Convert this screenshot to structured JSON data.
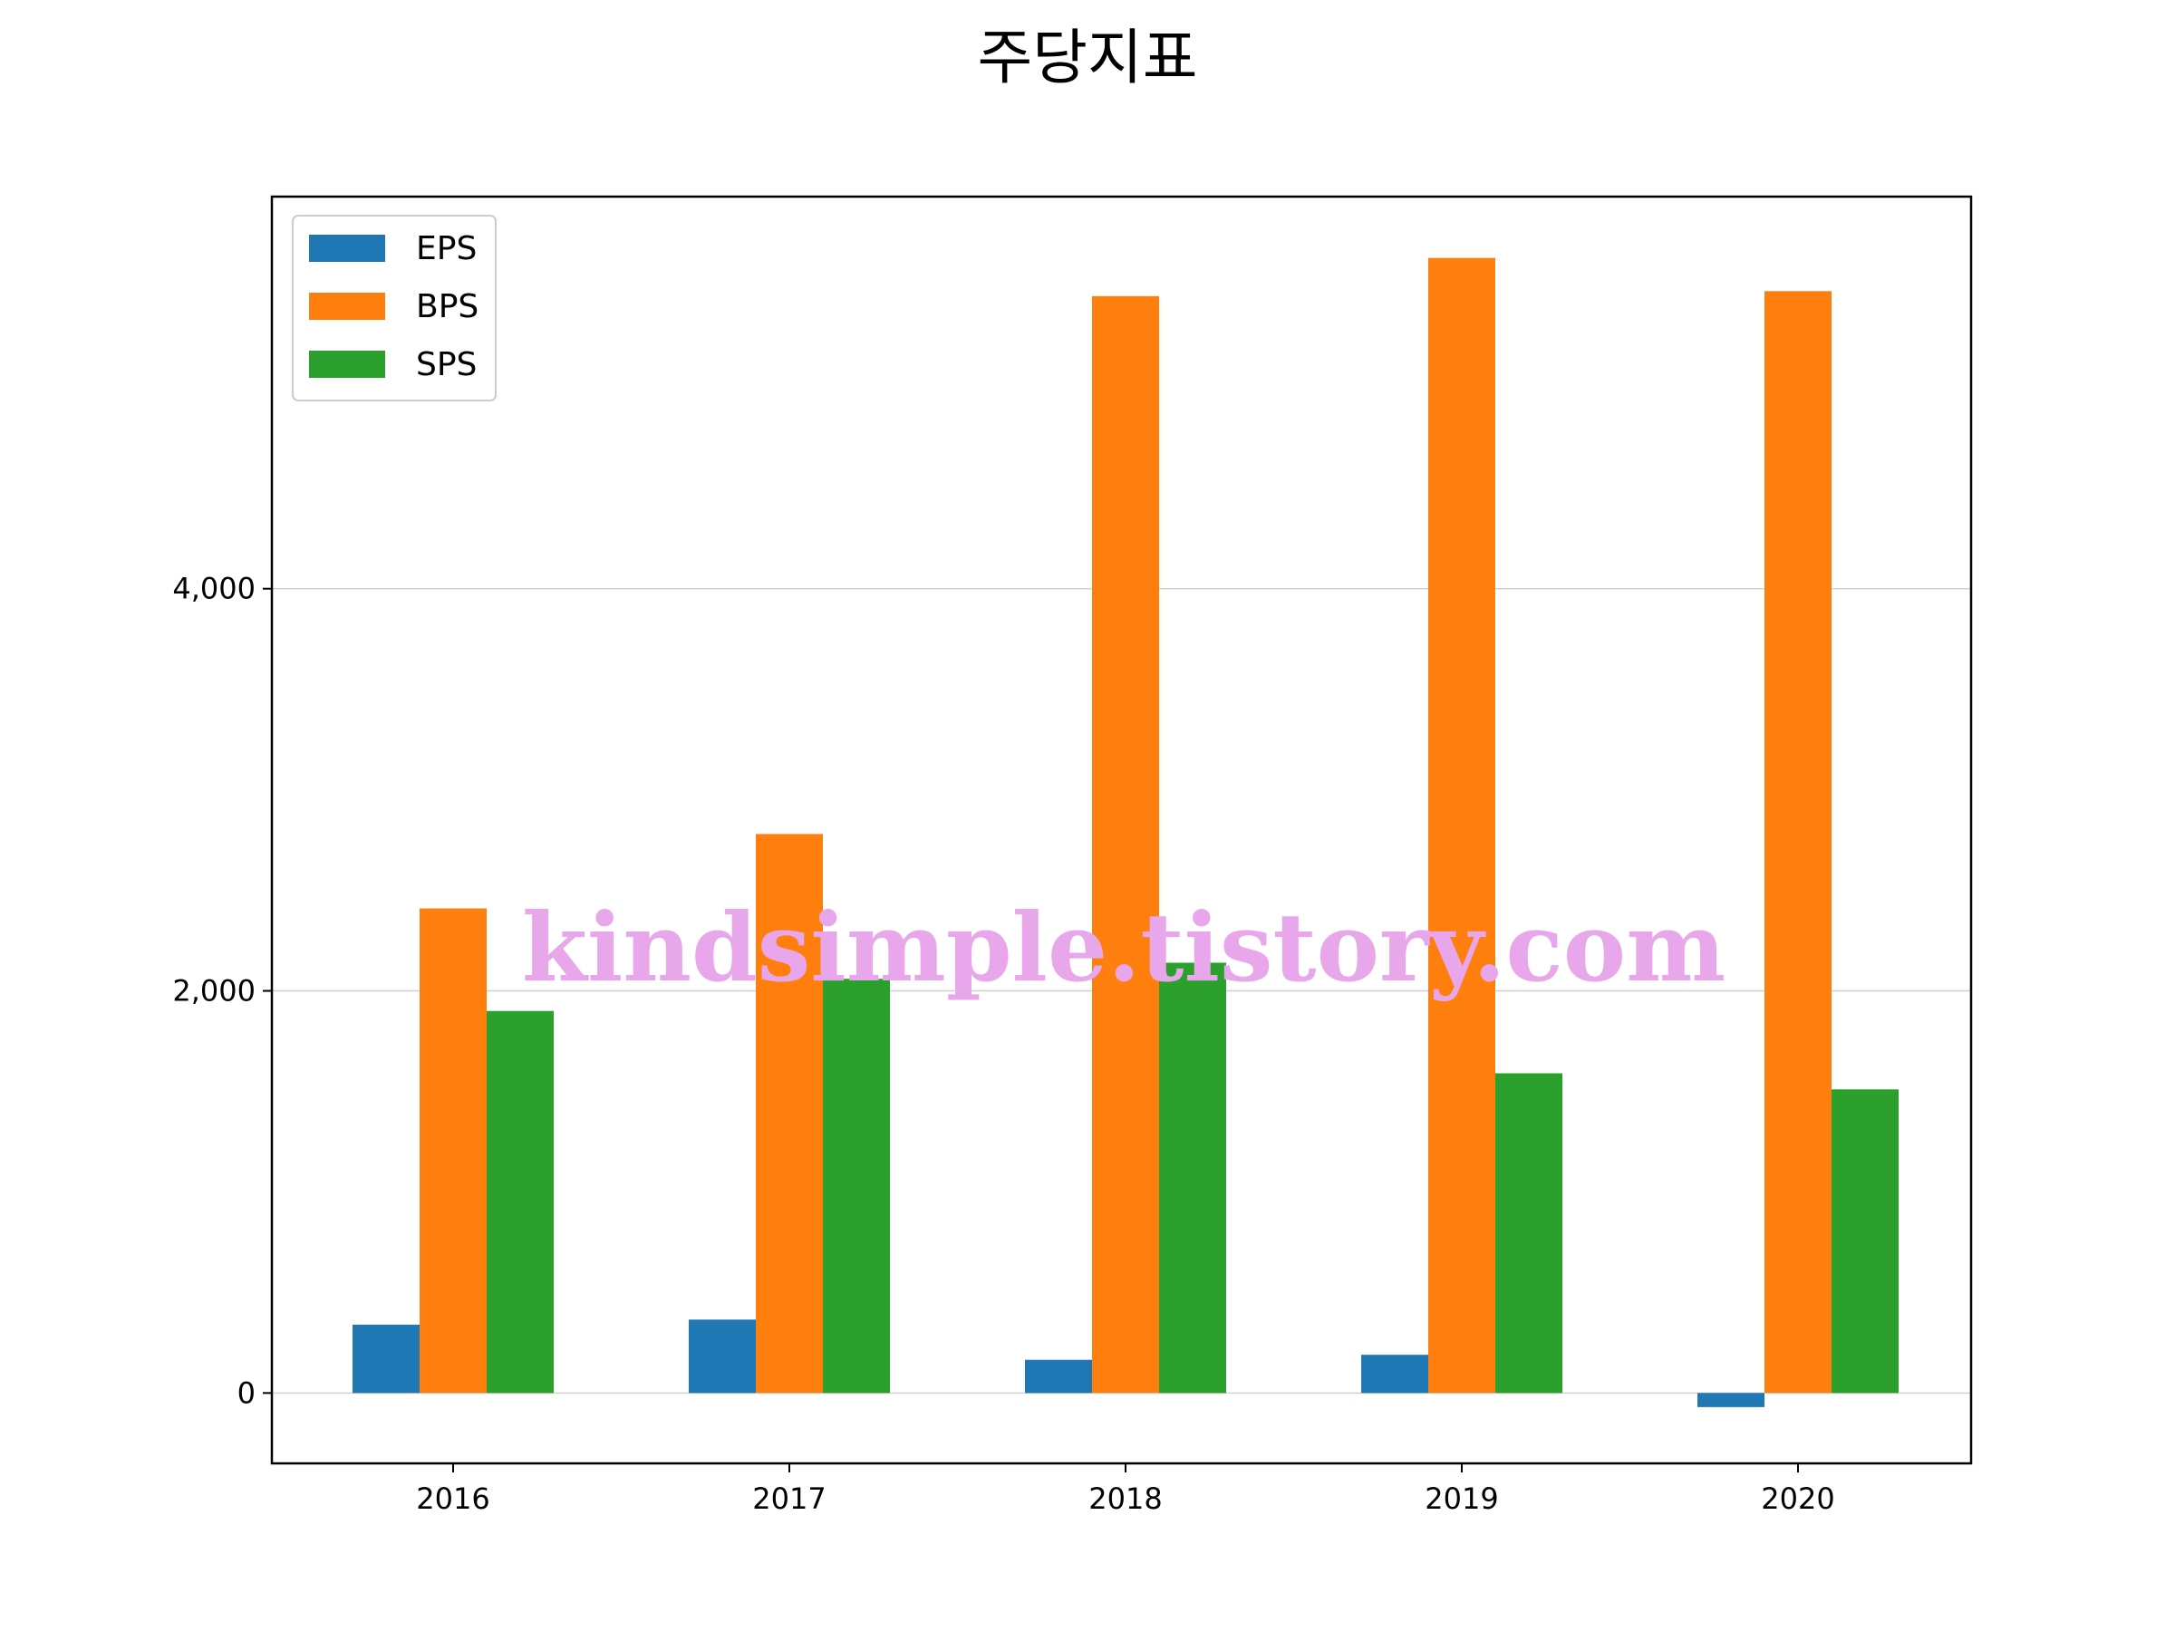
{
  "chart_data": {
    "type": "bar",
    "title": "주당지표",
    "xlabel": "",
    "ylabel": "",
    "categories": [
      "2016",
      "2017",
      "2018",
      "2019",
      "2020"
    ],
    "series": [
      {
        "name": "EPS",
        "color": "#1f77b4",
        "values": [
          340,
          365,
          165,
          190,
          -70
        ]
      },
      {
        "name": "BPS",
        "color": "#ff7f0e",
        "values": [
          2410,
          2780,
          5455,
          5645,
          5480
        ]
      },
      {
        "name": "SPS",
        "color": "#2ca02c",
        "values": [
          1900,
          2060,
          2140,
          1590,
          1510
        ]
      }
    ],
    "ylim": [
      -350,
      5950
    ],
    "yticks": [
      0,
      2000,
      4000
    ],
    "ytick_labels": [
      "0",
      "2,000",
      "4,000"
    ],
    "grid": "y",
    "legend_position": "top-left",
    "watermark": "kindsimple.tistory.com"
  }
}
